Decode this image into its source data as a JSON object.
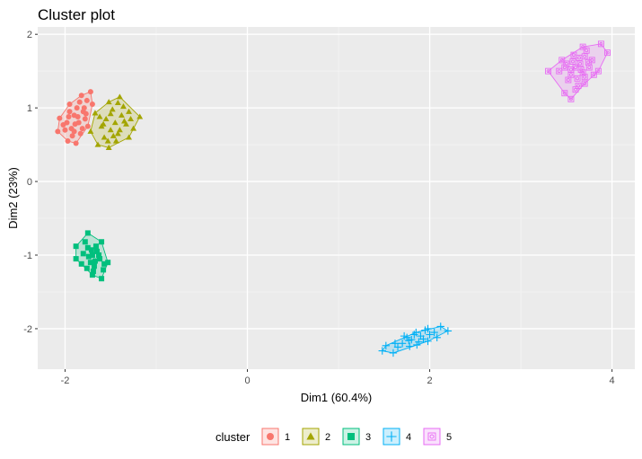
{
  "chart_data": {
    "type": "scatter",
    "title": "Cluster plot",
    "xlabel": "Dim1 (60.4%)",
    "ylabel": "Dim2 (23%)",
    "xlim": [
      -2.3,
      4.25
    ],
    "ylim": [
      -2.55,
      2.1
    ],
    "x_ticks": [
      -2,
      0,
      2,
      4
    ],
    "y_ticks": [
      -2,
      -1,
      0,
      1,
      2
    ],
    "grid": true,
    "legend": {
      "title": "cluster",
      "position": "bottom"
    },
    "series": [
      {
        "name": "1",
        "color": "#F8766D",
        "shape": "circle",
        "hull": [
          [
            -1.72,
            1.22
          ],
          [
            -1.7,
            1.05
          ],
          [
            -1.75,
            0.75
          ],
          [
            -1.88,
            0.52
          ],
          [
            -1.97,
            0.55
          ],
          [
            -2.08,
            0.68
          ],
          [
            -2.06,
            0.86
          ],
          [
            -1.95,
            1.05
          ],
          [
            -1.82,
            1.17
          ]
        ],
        "points": [
          [
            -1.72,
            1.22
          ],
          [
            -1.7,
            1.05
          ],
          [
            -1.75,
            0.75
          ],
          [
            -1.88,
            0.52
          ],
          [
            -1.97,
            0.55
          ],
          [
            -2.08,
            0.68
          ],
          [
            -2.06,
            0.86
          ],
          [
            -1.95,
            1.05
          ],
          [
            -1.82,
            1.17
          ],
          [
            -1.9,
            0.9
          ],
          [
            -1.85,
            0.8
          ],
          [
            -1.8,
            0.95
          ],
          [
            -1.93,
            0.72
          ],
          [
            -1.87,
            1.0
          ],
          [
            -1.78,
            0.85
          ],
          [
            -1.98,
            0.8
          ],
          [
            -1.83,
            0.65
          ],
          [
            -1.92,
            0.62
          ],
          [
            -2.0,
            0.7
          ],
          [
            -1.76,
            1.1
          ],
          [
            -1.86,
            0.88
          ],
          [
            -1.95,
            0.95
          ],
          [
            -1.81,
            0.72
          ],
          [
            -1.89,
            0.78
          ],
          [
            -1.79,
            1.0
          ],
          [
            -1.96,
            0.88
          ],
          [
            -1.84,
            1.08
          ],
          [
            -1.9,
            0.68
          ],
          [
            -1.77,
            0.92
          ],
          [
            -2.02,
            0.77
          ]
        ]
      },
      {
        "name": "2",
        "color": "#A3A500",
        "shape": "triangle",
        "hull": [
          [
            -1.4,
            1.15
          ],
          [
            -1.18,
            0.88
          ],
          [
            -1.3,
            0.6
          ],
          [
            -1.52,
            0.46
          ],
          [
            -1.64,
            0.5
          ],
          [
            -1.72,
            0.68
          ],
          [
            -1.67,
            0.93
          ],
          [
            -1.52,
            1.08
          ]
        ],
        "points": [
          [
            -1.4,
            1.15
          ],
          [
            -1.18,
            0.88
          ],
          [
            -1.3,
            0.6
          ],
          [
            -1.52,
            0.46
          ],
          [
            -1.64,
            0.5
          ],
          [
            -1.72,
            0.68
          ],
          [
            -1.67,
            0.93
          ],
          [
            -1.52,
            1.08
          ],
          [
            -1.45,
            0.8
          ],
          [
            -1.5,
            0.7
          ],
          [
            -1.38,
            0.9
          ],
          [
            -1.55,
            0.85
          ],
          [
            -1.42,
            0.65
          ],
          [
            -1.6,
            0.75
          ],
          [
            -1.33,
            0.78
          ],
          [
            -1.48,
            0.98
          ],
          [
            -1.36,
            1.02
          ],
          [
            -1.57,
            0.6
          ],
          [
            -1.44,
            0.55
          ],
          [
            -1.62,
            0.88
          ],
          [
            -1.25,
            0.72
          ],
          [
            -1.4,
            0.7
          ],
          [
            -1.5,
            0.92
          ],
          [
            -1.3,
            0.95
          ],
          [
            -1.47,
            0.62
          ],
          [
            -1.35,
            0.82
          ],
          [
            -1.58,
            0.78
          ],
          [
            -1.42,
            1.07
          ],
          [
            -1.28,
            0.85
          ],
          [
            -1.53,
            0.55
          ]
        ]
      },
      {
        "name": "3",
        "color": "#00BF7D",
        "shape": "square",
        "hull": [
          [
            -1.75,
            -0.7
          ],
          [
            -1.6,
            -0.82
          ],
          [
            -1.53,
            -1.1
          ],
          [
            -1.6,
            -1.32
          ],
          [
            -1.7,
            -1.27
          ],
          [
            -1.88,
            -1.05
          ],
          [
            -1.88,
            -0.88
          ]
        ],
        "points": [
          [
            -1.75,
            -0.7
          ],
          [
            -1.6,
            -0.82
          ],
          [
            -1.53,
            -1.1
          ],
          [
            -1.6,
            -1.32
          ],
          [
            -1.7,
            -1.27
          ],
          [
            -1.88,
            -1.05
          ],
          [
            -1.88,
            -0.88
          ],
          [
            -1.7,
            -1.0
          ],
          [
            -1.65,
            -0.95
          ],
          [
            -1.75,
            -0.9
          ],
          [
            -1.68,
            -1.15
          ],
          [
            -1.62,
            -1.05
          ],
          [
            -1.8,
            -0.98
          ],
          [
            -1.72,
            -1.1
          ],
          [
            -1.66,
            -0.88
          ],
          [
            -1.58,
            -1.2
          ],
          [
            -1.78,
            -0.82
          ],
          [
            -1.69,
            -1.22
          ],
          [
            -1.74,
            -1.02
          ],
          [
            -1.63,
            -1.0
          ],
          [
            -1.82,
            -1.12
          ],
          [
            -1.71,
            -0.93
          ],
          [
            -1.57,
            -1.12
          ],
          [
            -1.76,
            -1.18
          ],
          [
            -1.67,
            -1.08
          ]
        ]
      },
      {
        "name": "4",
        "color": "#00B0F6",
        "shape": "plus",
        "hull": [
          [
            2.12,
            -1.97
          ],
          [
            2.2,
            -2.03
          ],
          [
            1.98,
            -2.17
          ],
          [
            1.6,
            -2.33
          ],
          [
            1.48,
            -2.3
          ],
          [
            1.52,
            -2.23
          ],
          [
            1.85,
            -2.05
          ]
        ],
        "points": [
          [
            2.12,
            -1.97
          ],
          [
            2.2,
            -2.03
          ],
          [
            1.98,
            -2.17
          ],
          [
            1.6,
            -2.33
          ],
          [
            1.48,
            -2.3
          ],
          [
            1.52,
            -2.23
          ],
          [
            1.85,
            -2.05
          ],
          [
            1.8,
            -2.15
          ],
          [
            1.9,
            -2.1
          ],
          [
            1.7,
            -2.2
          ],
          [
            2.0,
            -2.08
          ],
          [
            1.75,
            -2.12
          ],
          [
            1.95,
            -2.02
          ],
          [
            1.65,
            -2.25
          ],
          [
            1.88,
            -2.18
          ],
          [
            2.05,
            -2.05
          ],
          [
            1.78,
            -2.24
          ],
          [
            1.93,
            -2.14
          ],
          [
            1.72,
            -2.1
          ],
          [
            1.83,
            -2.08
          ],
          [
            2.08,
            -2.12
          ],
          [
            1.62,
            -2.2
          ],
          [
            1.98,
            -2.0
          ],
          [
            1.86,
            -2.22
          ],
          [
            1.77,
            -2.16
          ]
        ]
      },
      {
        "name": "5",
        "color": "#E76BF3",
        "shape": "square-circle",
        "hull": [
          [
            3.88,
            1.87
          ],
          [
            3.95,
            1.75
          ],
          [
            3.85,
            1.5
          ],
          [
            3.7,
            1.33
          ],
          [
            3.55,
            1.12
          ],
          [
            3.48,
            1.2
          ],
          [
            3.3,
            1.5
          ],
          [
            3.45,
            1.65
          ],
          [
            3.68,
            1.83
          ]
        ],
        "points": [
          [
            3.88,
            1.87
          ],
          [
            3.95,
            1.75
          ],
          [
            3.85,
            1.5
          ],
          [
            3.7,
            1.33
          ],
          [
            3.55,
            1.12
          ],
          [
            3.48,
            1.2
          ],
          [
            3.3,
            1.5
          ],
          [
            3.45,
            1.65
          ],
          [
            3.68,
            1.83
          ],
          [
            3.6,
            1.55
          ],
          [
            3.65,
            1.6
          ],
          [
            3.55,
            1.45
          ],
          [
            3.7,
            1.7
          ],
          [
            3.5,
            1.6
          ],
          [
            3.62,
            1.4
          ],
          [
            3.75,
            1.55
          ],
          [
            3.58,
            1.72
          ],
          [
            3.68,
            1.48
          ],
          [
            3.52,
            1.38
          ],
          [
            3.78,
            1.65
          ],
          [
            3.63,
            1.3
          ],
          [
            3.42,
            1.5
          ],
          [
            3.72,
            1.78
          ],
          [
            3.57,
            1.63
          ],
          [
            3.66,
            1.52
          ],
          [
            3.8,
            1.45
          ],
          [
            3.48,
            1.55
          ],
          [
            3.6,
            1.25
          ],
          [
            3.74,
            1.62
          ],
          [
            3.55,
            1.52
          ],
          [
            3.64,
            1.68
          ],
          [
            3.7,
            1.42
          ]
        ]
      }
    ]
  }
}
